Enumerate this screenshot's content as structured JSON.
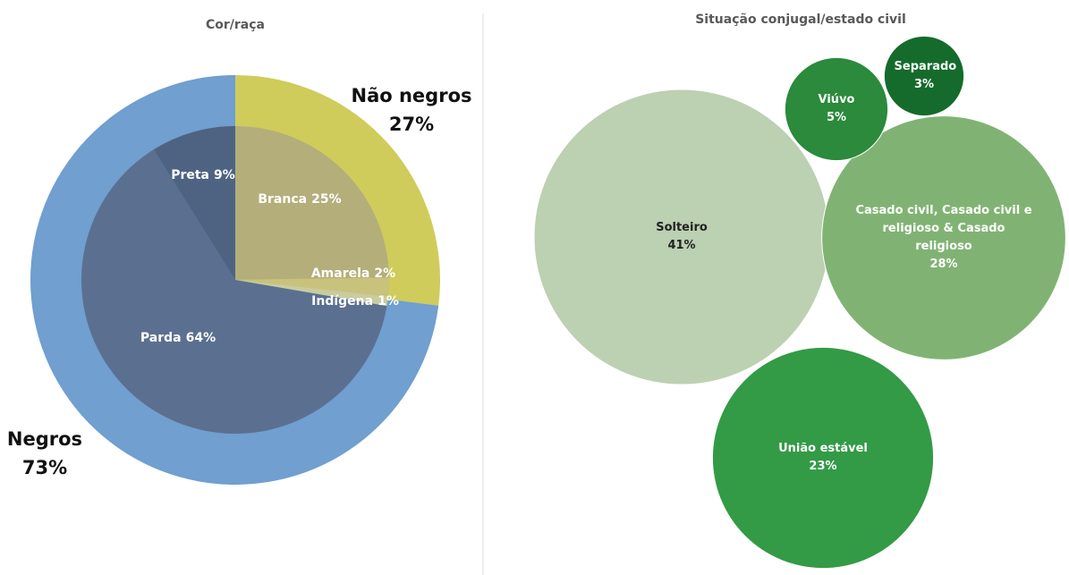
{
  "chart_data": [
    {
      "type": "pie",
      "title": "Cor/raça",
      "outer": {
        "categories": [
          "Não negros",
          "Negros"
        ],
        "values": [
          27,
          73
        ],
        "value_labels": [
          "27%",
          "73%"
        ],
        "colors": [
          "#cfcc5b",
          "#709fd0"
        ]
      },
      "inner": {
        "categories": [
          "Branca",
          "Amarela",
          "Indígena",
          "Parda",
          "Preta"
        ],
        "values": [
          25,
          2,
          1,
          64,
          9
        ],
        "value_labels": [
          "25%",
          "2%",
          "1%",
          "64%",
          "9%"
        ],
        "colors": [
          "#b4ae7b",
          "#c8c27c",
          "#c9cba0",
          "#5b7090",
          "#4e6382"
        ]
      }
    },
    {
      "type": "bubble",
      "title": "Situação conjugal/estado civil",
      "categories": [
        "Solteiro",
        "Casado civil, Casado civil e religioso & Casado religioso",
        "União estável",
        "Viúvo",
        "Separado"
      ],
      "values": [
        41,
        28,
        23,
        5,
        3
      ],
      "value_labels": [
        "41%",
        "28%",
        "23%",
        "5%",
        "3%"
      ],
      "colors": [
        "#bcd0b2",
        "#80b373",
        "#339a46",
        "#2b8a3b",
        "#146b2b"
      ]
    }
  ]
}
